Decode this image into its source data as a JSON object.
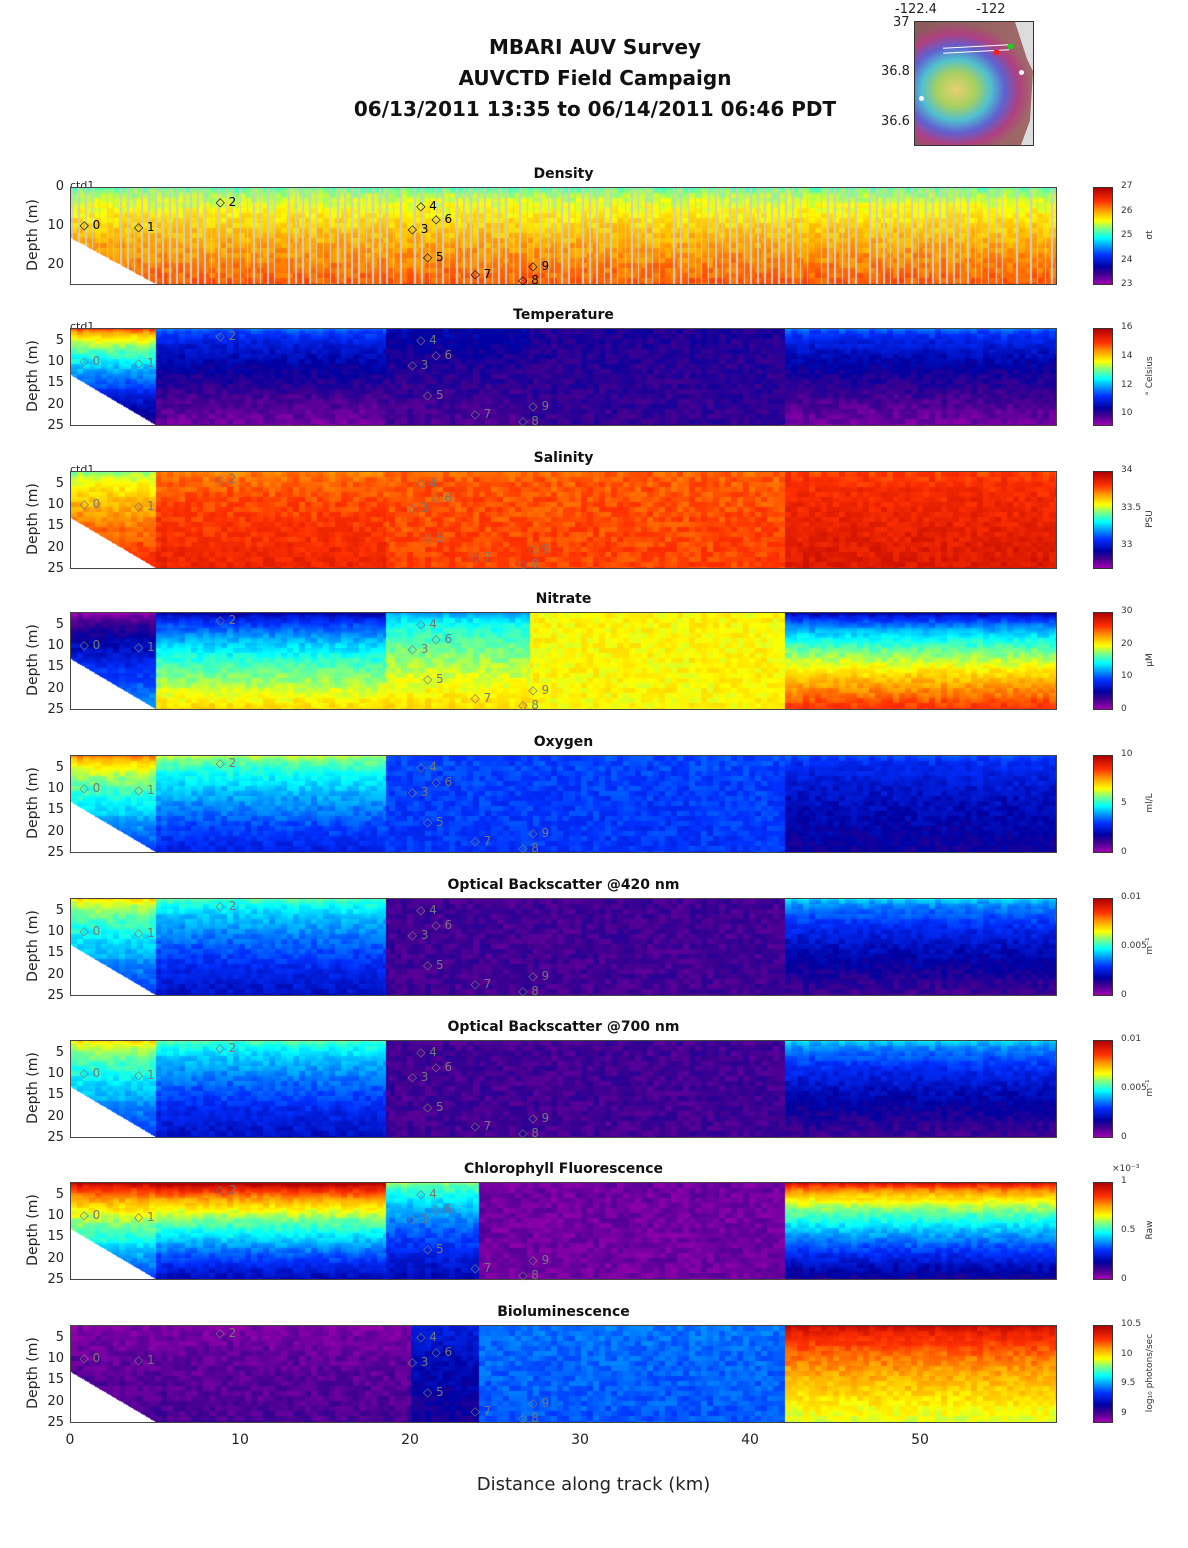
{
  "header": {
    "line1": "MBARI AUV Survey",
    "line2": "AUVCTD Field Campaign",
    "line3": "06/13/2011 13:35  to 06/14/2011 06:46 PDT"
  },
  "map": {
    "lon_ticks": [
      "-122.4",
      "-122"
    ],
    "lat_ticks": [
      "37",
      "36.8",
      "36.6"
    ]
  },
  "xaxis": {
    "label": "Distance along track (km)",
    "ticks": [
      "0",
      "10",
      "20",
      "30",
      "40",
      "50"
    ],
    "max_km": 58.2
  },
  "markers": [
    {
      "label": "0",
      "km": 0.8,
      "depth": 10
    },
    {
      "label": "1",
      "km": 4.0,
      "depth": 10.5
    },
    {
      "label": "2",
      "km": 8.8,
      "depth": 4
    },
    {
      "label": "3",
      "km": 20.1,
      "depth": 11
    },
    {
      "label": "4",
      "km": 20.6,
      "depth": 5
    },
    {
      "label": "5",
      "km": 21.0,
      "depth": 18
    },
    {
      "label": "6",
      "km": 21.5,
      "depth": 8.5
    },
    {
      "label": "7",
      "km": 23.8,
      "depth": 22.5
    },
    {
      "label": "8",
      "km": 26.6,
      "depth": 24
    },
    {
      "label": "9",
      "km": 27.2,
      "depth": 20.5
    }
  ],
  "chart_data": [
    {
      "type": "heatmap",
      "title": "Density",
      "ylabel": "Depth (m)",
      "source": "ctd1",
      "ylim": [
        0,
        25
      ],
      "yticks": [
        "0",
        "10",
        "20"
      ],
      "clim": [
        23,
        27
      ],
      "cticks": [
        "23",
        "24",
        "25",
        "26",
        "27"
      ],
      "unit": "σt",
      "segments": [
        [
          0,
          58.2,
          25.2,
          26.3
        ]
      ]
    },
    {
      "type": "heatmap",
      "title": "Temperature",
      "ylabel": "Depth (m)",
      "source": "ctd1",
      "ylim": [
        2,
        25
      ],
      "yticks": [
        "5",
        "10",
        "15",
        "20",
        "25"
      ],
      "clim": [
        9.2,
        16
      ],
      "cticks": [
        "10",
        "12",
        "14",
        "16"
      ],
      "unit": "° Celsius",
      "segments": [
        [
          0,
          5,
          15,
          10
        ],
        [
          5,
          18.5,
          11.6,
          9.5
        ],
        [
          18.5,
          27,
          10.6,
          9.8
        ],
        [
          27,
          42,
          10.2,
          10
        ],
        [
          42,
          58.2,
          11.6,
          9.5
        ]
      ]
    },
    {
      "type": "heatmap",
      "title": "Salinity",
      "ylabel": "Depth (m)",
      "source": "ctd1",
      "ylim": [
        2,
        25
      ],
      "yticks": [
        "5",
        "10",
        "15",
        "20",
        "25"
      ],
      "clim": [
        32.7,
        34
      ],
      "cticks": [
        "33",
        "33.5",
        "34"
      ],
      "unit": "PSU",
      "segments": [
        [
          0,
          5,
          33.45,
          33.85
        ],
        [
          5,
          18.5,
          33.72,
          33.86
        ],
        [
          18.5,
          42,
          33.76,
          33.8
        ],
        [
          42,
          58.2,
          33.8,
          33.9
        ]
      ]
    },
    {
      "type": "heatmap",
      "title": "Nitrate",
      "ylabel": "Depth (m)",
      "source": "",
      "ylim": [
        2,
        25
      ],
      "yticks": [
        "5",
        "10",
        "15",
        "20",
        "25"
      ],
      "clim": [
        0,
        30
      ],
      "cticks": [
        "0",
        "10",
        "20",
        "30"
      ],
      "unit": "μM",
      "segments": [
        [
          0,
          5,
          0,
          12
        ],
        [
          5,
          18.5,
          5,
          21
        ],
        [
          18.5,
          27,
          12,
          21
        ],
        [
          27,
          42,
          20,
          20
        ],
        [
          42,
          58.2,
          5,
          26
        ]
      ]
    },
    {
      "type": "heatmap",
      "title": "Oxygen",
      "ylabel": "Depth (m)",
      "source": "",
      "ylim": [
        2,
        25
      ],
      "yticks": [
        "5",
        "10",
        "15",
        "20",
        "25"
      ],
      "clim": [
        0,
        10
      ],
      "cticks": [
        "0",
        "5",
        "10"
      ],
      "unit": "ml/L",
      "segments": [
        [
          0,
          5,
          8,
          3
        ],
        [
          5,
          18.5,
          6.2,
          2.6
        ],
        [
          18.5,
          42,
          3.2,
          3
        ],
        [
          42,
          58.2,
          3.2,
          1.6
        ]
      ]
    },
    {
      "type": "heatmap",
      "title": "Optical Backscatter @420 nm",
      "ylabel": "Depth (m)",
      "source": "",
      "ylim": [
        2,
        25
      ],
      "yticks": [
        "5",
        "10",
        "15",
        "20",
        "25"
      ],
      "clim": [
        0,
        0.01
      ],
      "cticks": [
        "0",
        "0.005",
        "0.01"
      ],
      "unit": "m⁻¹",
      "segments": [
        [
          0,
          5,
          0.007,
          0.003
        ],
        [
          5,
          18.5,
          0.0055,
          0.0022
        ],
        [
          18.5,
          42,
          0.001,
          0.001
        ],
        [
          42,
          58.2,
          0.0045,
          0.001
        ]
      ]
    },
    {
      "type": "heatmap",
      "title": "Optical Backscatter @700 nm",
      "ylabel": "Depth (m)",
      "source": "",
      "ylim": [
        2,
        25
      ],
      "yticks": [
        "5",
        "10",
        "15",
        "20",
        "25"
      ],
      "clim": [
        0,
        0.01
      ],
      "cticks": [
        "0",
        "0.005",
        "0.01"
      ],
      "unit": "m⁻¹",
      "segments": [
        [
          0,
          5,
          0.007,
          0.003
        ],
        [
          5,
          18.5,
          0.0055,
          0.0022
        ],
        [
          18.5,
          42,
          0.001,
          0.001
        ],
        [
          42,
          58.2,
          0.0045,
          0.001
        ]
      ]
    },
    {
      "type": "heatmap",
      "title": "Chlorophyll Fluorescence",
      "ylabel": "Depth (m)",
      "source": "",
      "ylim": [
        2,
        25
      ],
      "yticks": [
        "5",
        "10",
        "15",
        "20",
        "25"
      ],
      "clim": [
        0,
        1
      ],
      "cticks": [
        "0",
        "0.5",
        "1"
      ],
      "cscale": "×10⁻³",
      "unit": "Raw",
      "segments": [
        [
          0,
          5,
          1,
          0.3
        ],
        [
          5,
          18.5,
          1.05,
          0.2
        ],
        [
          18.5,
          24,
          0.6,
          0.2
        ],
        [
          24,
          42,
          0.05,
          0.05
        ],
        [
          42,
          58.2,
          0.95,
          0.15
        ]
      ]
    },
    {
      "type": "heatmap",
      "title": "Bioluminescence",
      "ylabel": "Depth (m)",
      "source": "",
      "ylim": [
        2,
        25
      ],
      "yticks": [
        "5",
        "10",
        "15",
        "20",
        "25"
      ],
      "clim": [
        8.85,
        10.5
      ],
      "cticks": [
        "9",
        "9.5",
        "10",
        "10.5"
      ],
      "unit": "log₁₀ photons/sec",
      "segments": [
        [
          0,
          20,
          8.9,
          9.0
        ],
        [
          20,
          24,
          9.3,
          9.1
        ],
        [
          24,
          42,
          9.45,
          9.4
        ],
        [
          42,
          58.2,
          10.45,
          9.9
        ]
      ]
    }
  ]
}
